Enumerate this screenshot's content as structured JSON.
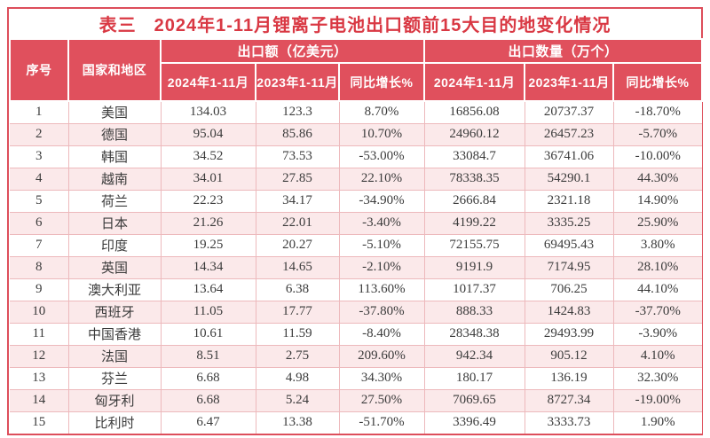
{
  "colors": {
    "header_bg": "#e0505d",
    "title_text": "#d93843",
    "outer_border": "#dd4e5b",
    "stripe_bg": "#fbe9ea",
    "grid_line": "#edb9bc",
    "cell_text": "#3b3b3b"
  },
  "chart_data": {
    "type": "table",
    "title_label": "表三",
    "title_text": "2024年1-11月锂离子电池出口额前15大目的地变化情况",
    "header": {
      "seq": "序号",
      "country": "国家和地区",
      "group_export_value": "出口额（亿美元）",
      "group_export_qty": "出口数量（万个）",
      "sub_2024": "2024年1-11月",
      "sub_2023": "2023年1-11月",
      "sub_yoy": "同比增长%"
    },
    "rows": [
      [
        "1",
        "美国",
        "134.03",
        "123.3",
        "8.70%",
        "16856.08",
        "20737.37",
        "-18.70%"
      ],
      [
        "2",
        "德国",
        "95.04",
        "85.86",
        "10.70%",
        "24960.12",
        "26457.23",
        "-5.70%"
      ],
      [
        "3",
        "韩国",
        "34.52",
        "73.53",
        "-53.00%",
        "33084.7",
        "36741.06",
        "-10.00%"
      ],
      [
        "4",
        "越南",
        "34.01",
        "27.85",
        "22.10%",
        "78338.35",
        "54290.1",
        "44.30%"
      ],
      [
        "5",
        "荷兰",
        "22.23",
        "34.17",
        "-34.90%",
        "2666.84",
        "2321.18",
        "14.90%"
      ],
      [
        "6",
        "日本",
        "21.26",
        "22.01",
        "-3.40%",
        "4199.22",
        "3335.25",
        "25.90%"
      ],
      [
        "7",
        "印度",
        "19.25",
        "20.27",
        "-5.10%",
        "72155.75",
        "69495.43",
        "3.80%"
      ],
      [
        "8",
        "英国",
        "14.34",
        "14.65",
        "-2.10%",
        "9191.9",
        "7174.95",
        "28.10%"
      ],
      [
        "9",
        "澳大利亚",
        "13.64",
        "6.38",
        "113.60%",
        "1017.37",
        "706.25",
        "44.10%"
      ],
      [
        "10",
        "西班牙",
        "11.05",
        "17.77",
        "-37.80%",
        "888.33",
        "1424.83",
        "-37.70%"
      ],
      [
        "11",
        "中国香港",
        "10.61",
        "11.59",
        "-8.40%",
        "28348.38",
        "29493.99",
        "-3.90%"
      ],
      [
        "12",
        "法国",
        "8.51",
        "2.75",
        "209.60%",
        "942.34",
        "905.12",
        "4.10%"
      ],
      [
        "13",
        "芬兰",
        "6.68",
        "4.98",
        "34.30%",
        "180.17",
        "136.19",
        "32.30%"
      ],
      [
        "14",
        "匈牙利",
        "6.68",
        "5.24",
        "27.50%",
        "7069.65",
        "8727.34",
        "-19.00%"
      ],
      [
        "15",
        "比利时",
        "6.47",
        "13.38",
        "-51.70%",
        "3396.49",
        "3333.73",
        "1.90%"
      ]
    ]
  }
}
